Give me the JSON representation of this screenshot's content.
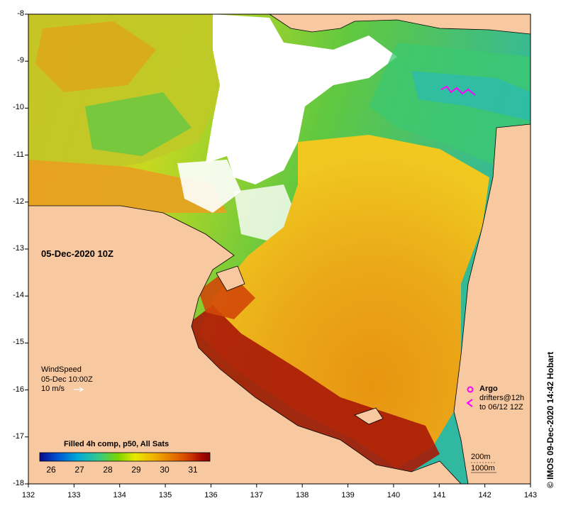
{
  "map": {
    "date_label": "05-Dec-2020 10Z",
    "colorbar": {
      "title": "Filled 4h comp, p50, All Sats",
      "ticks": [
        "26",
        "27",
        "28",
        "29",
        "30",
        "31"
      ],
      "range": [
        25.6,
        31.6
      ],
      "colors": [
        "#0a0a8c",
        "#0050d0",
        "#00a8d8",
        "#30c890",
        "#7cd400",
        "#e8e800",
        "#f0b800",
        "#e88000",
        "#d84800",
        "#a80800",
        "#800000"
      ]
    },
    "wind_legend": {
      "title": "WindSpeed",
      "time": "05-Dec 10:00Z",
      "scale": "10 m/s"
    },
    "argo_legend": {
      "argo": "Argo",
      "drifters": "drifters@12h",
      "to": "to 06/12 12Z"
    },
    "contours": {
      "c200": "200m",
      "c1000": "1000m"
    },
    "credit": "© IMOS 09-Dec-2020 14:42 Hobart",
    "x_ticks": [
      "132",
      "133",
      "134",
      "135",
      "136",
      "137",
      "138",
      "139",
      "140",
      "141",
      "142",
      "143"
    ],
    "y_ticks": [
      "-8",
      "-9",
      "-10",
      "-11",
      "-12",
      "-13",
      "-14",
      "-15",
      "-16",
      "-17",
      "-18"
    ],
    "colors": {
      "land": "#f8c8a0",
      "coast": "#000000",
      "argo": "#ff00ff"
    }
  }
}
